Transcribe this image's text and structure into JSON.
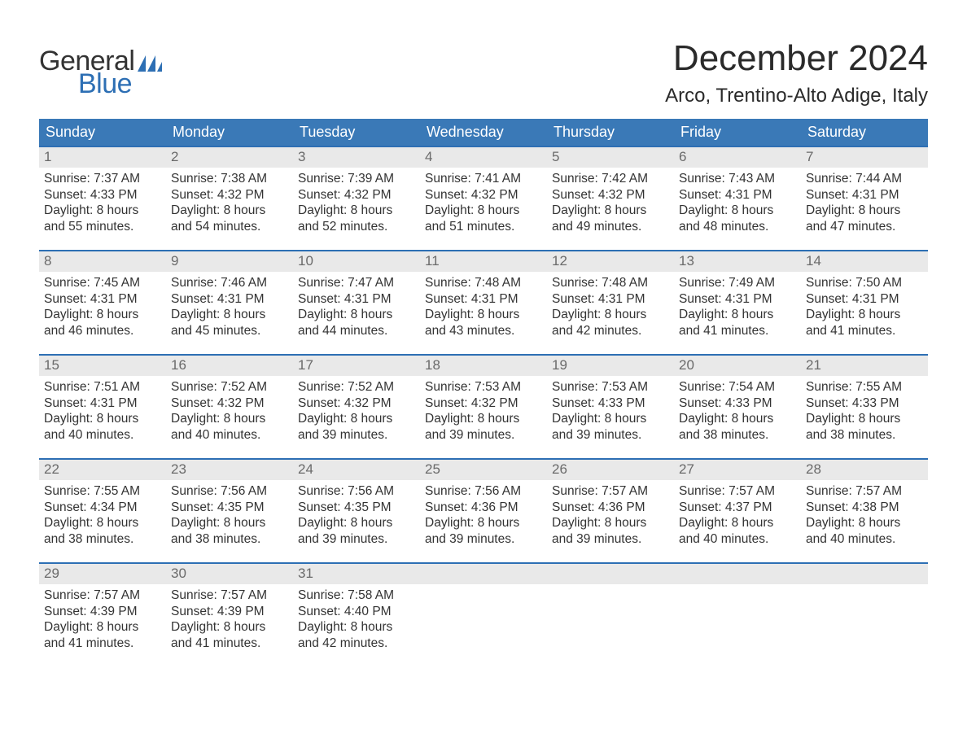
{
  "brand": {
    "word1": "General",
    "word2": "Blue",
    "text_color_dark": "#333333",
    "text_color_blue": "#2d6fb4",
    "flag_color": "#2d6fb4"
  },
  "header": {
    "month_title": "December 2024",
    "location": "Arco, Trentino-Alto Adige, Italy",
    "title_color": "#2a2a2a",
    "title_fontsize": 44,
    "location_fontsize": 24
  },
  "calendar": {
    "columns": [
      "Sunday",
      "Monday",
      "Tuesday",
      "Wednesday",
      "Thursday",
      "Friday",
      "Saturday"
    ],
    "header_bg": "#3a79b7",
    "header_fg": "#ffffff",
    "row_top_border_color": "#2d6fb4",
    "daynum_bg": "#e9e9e9",
    "daynum_fg": "#6a6a6a",
    "cell_text_color": "#333333",
    "cell_fontsize": 15.5,
    "weeks": [
      [
        {
          "day": "1",
          "sunrise": "Sunrise: 7:37 AM",
          "sunset": "Sunset: 4:33 PM",
          "dl1": "Daylight: 8 hours",
          "dl2": "and 55 minutes."
        },
        {
          "day": "2",
          "sunrise": "Sunrise: 7:38 AM",
          "sunset": "Sunset: 4:32 PM",
          "dl1": "Daylight: 8 hours",
          "dl2": "and 54 minutes."
        },
        {
          "day": "3",
          "sunrise": "Sunrise: 7:39 AM",
          "sunset": "Sunset: 4:32 PM",
          "dl1": "Daylight: 8 hours",
          "dl2": "and 52 minutes."
        },
        {
          "day": "4",
          "sunrise": "Sunrise: 7:41 AM",
          "sunset": "Sunset: 4:32 PM",
          "dl1": "Daylight: 8 hours",
          "dl2": "and 51 minutes."
        },
        {
          "day": "5",
          "sunrise": "Sunrise: 7:42 AM",
          "sunset": "Sunset: 4:32 PM",
          "dl1": "Daylight: 8 hours",
          "dl2": "and 49 minutes."
        },
        {
          "day": "6",
          "sunrise": "Sunrise: 7:43 AM",
          "sunset": "Sunset: 4:31 PM",
          "dl1": "Daylight: 8 hours",
          "dl2": "and 48 minutes."
        },
        {
          "day": "7",
          "sunrise": "Sunrise: 7:44 AM",
          "sunset": "Sunset: 4:31 PM",
          "dl1": "Daylight: 8 hours",
          "dl2": "and 47 minutes."
        }
      ],
      [
        {
          "day": "8",
          "sunrise": "Sunrise: 7:45 AM",
          "sunset": "Sunset: 4:31 PM",
          "dl1": "Daylight: 8 hours",
          "dl2": "and 46 minutes."
        },
        {
          "day": "9",
          "sunrise": "Sunrise: 7:46 AM",
          "sunset": "Sunset: 4:31 PM",
          "dl1": "Daylight: 8 hours",
          "dl2": "and 45 minutes."
        },
        {
          "day": "10",
          "sunrise": "Sunrise: 7:47 AM",
          "sunset": "Sunset: 4:31 PM",
          "dl1": "Daylight: 8 hours",
          "dl2": "and 44 minutes."
        },
        {
          "day": "11",
          "sunrise": "Sunrise: 7:48 AM",
          "sunset": "Sunset: 4:31 PM",
          "dl1": "Daylight: 8 hours",
          "dl2": "and 43 minutes."
        },
        {
          "day": "12",
          "sunrise": "Sunrise: 7:48 AM",
          "sunset": "Sunset: 4:31 PM",
          "dl1": "Daylight: 8 hours",
          "dl2": "and 42 minutes."
        },
        {
          "day": "13",
          "sunrise": "Sunrise: 7:49 AM",
          "sunset": "Sunset: 4:31 PM",
          "dl1": "Daylight: 8 hours",
          "dl2": "and 41 minutes."
        },
        {
          "day": "14",
          "sunrise": "Sunrise: 7:50 AM",
          "sunset": "Sunset: 4:31 PM",
          "dl1": "Daylight: 8 hours",
          "dl2": "and 41 minutes."
        }
      ],
      [
        {
          "day": "15",
          "sunrise": "Sunrise: 7:51 AM",
          "sunset": "Sunset: 4:31 PM",
          "dl1": "Daylight: 8 hours",
          "dl2": "and 40 minutes."
        },
        {
          "day": "16",
          "sunrise": "Sunrise: 7:52 AM",
          "sunset": "Sunset: 4:32 PM",
          "dl1": "Daylight: 8 hours",
          "dl2": "and 40 minutes."
        },
        {
          "day": "17",
          "sunrise": "Sunrise: 7:52 AM",
          "sunset": "Sunset: 4:32 PM",
          "dl1": "Daylight: 8 hours",
          "dl2": "and 39 minutes."
        },
        {
          "day": "18",
          "sunrise": "Sunrise: 7:53 AM",
          "sunset": "Sunset: 4:32 PM",
          "dl1": "Daylight: 8 hours",
          "dl2": "and 39 minutes."
        },
        {
          "day": "19",
          "sunrise": "Sunrise: 7:53 AM",
          "sunset": "Sunset: 4:33 PM",
          "dl1": "Daylight: 8 hours",
          "dl2": "and 39 minutes."
        },
        {
          "day": "20",
          "sunrise": "Sunrise: 7:54 AM",
          "sunset": "Sunset: 4:33 PM",
          "dl1": "Daylight: 8 hours",
          "dl2": "and 38 minutes."
        },
        {
          "day": "21",
          "sunrise": "Sunrise: 7:55 AM",
          "sunset": "Sunset: 4:33 PM",
          "dl1": "Daylight: 8 hours",
          "dl2": "and 38 minutes."
        }
      ],
      [
        {
          "day": "22",
          "sunrise": "Sunrise: 7:55 AM",
          "sunset": "Sunset: 4:34 PM",
          "dl1": "Daylight: 8 hours",
          "dl2": "and 38 minutes."
        },
        {
          "day": "23",
          "sunrise": "Sunrise: 7:56 AM",
          "sunset": "Sunset: 4:35 PM",
          "dl1": "Daylight: 8 hours",
          "dl2": "and 38 minutes."
        },
        {
          "day": "24",
          "sunrise": "Sunrise: 7:56 AM",
          "sunset": "Sunset: 4:35 PM",
          "dl1": "Daylight: 8 hours",
          "dl2": "and 39 minutes."
        },
        {
          "day": "25",
          "sunrise": "Sunrise: 7:56 AM",
          "sunset": "Sunset: 4:36 PM",
          "dl1": "Daylight: 8 hours",
          "dl2": "and 39 minutes."
        },
        {
          "day": "26",
          "sunrise": "Sunrise: 7:57 AM",
          "sunset": "Sunset: 4:36 PM",
          "dl1": "Daylight: 8 hours",
          "dl2": "and 39 minutes."
        },
        {
          "day": "27",
          "sunrise": "Sunrise: 7:57 AM",
          "sunset": "Sunset: 4:37 PM",
          "dl1": "Daylight: 8 hours",
          "dl2": "and 40 minutes."
        },
        {
          "day": "28",
          "sunrise": "Sunrise: 7:57 AM",
          "sunset": "Sunset: 4:38 PM",
          "dl1": "Daylight: 8 hours",
          "dl2": "and 40 minutes."
        }
      ],
      [
        {
          "day": "29",
          "sunrise": "Sunrise: 7:57 AM",
          "sunset": "Sunset: 4:39 PM",
          "dl1": "Daylight: 8 hours",
          "dl2": "and 41 minutes."
        },
        {
          "day": "30",
          "sunrise": "Sunrise: 7:57 AM",
          "sunset": "Sunset: 4:39 PM",
          "dl1": "Daylight: 8 hours",
          "dl2": "and 41 minutes."
        },
        {
          "day": "31",
          "sunrise": "Sunrise: 7:58 AM",
          "sunset": "Sunset: 4:40 PM",
          "dl1": "Daylight: 8 hours",
          "dl2": "and 42 minutes."
        },
        null,
        null,
        null,
        null
      ]
    ]
  }
}
